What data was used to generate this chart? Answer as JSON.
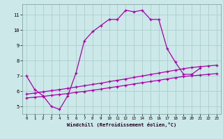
{
  "bg_color": "#cce8e8",
  "grid_color": "#aacfcf",
  "line_color": "#aa00aa",
  "xlabel": "Windchill (Refroidissement éolien,°C)",
  "xlim": [
    -0.5,
    23.5
  ],
  "ylim": [
    4.5,
    11.7
  ],
  "xticks": [
    0,
    1,
    2,
    3,
    4,
    5,
    6,
    7,
    8,
    9,
    10,
    11,
    12,
    13,
    14,
    15,
    16,
    17,
    18,
    19,
    20,
    21,
    22,
    23
  ],
  "yticks": [
    5,
    6,
    7,
    8,
    9,
    10,
    11
  ],
  "s1_x": [
    0,
    1,
    2,
    3,
    4,
    5,
    6,
    7,
    8,
    9,
    10,
    11,
    12,
    13,
    14,
    15,
    16,
    17,
    18,
    19,
    20,
    21
  ],
  "s1_y": [
    7.0,
    6.1,
    5.7,
    5.0,
    4.8,
    5.7,
    7.2,
    9.3,
    9.9,
    10.3,
    10.7,
    10.7,
    11.3,
    11.2,
    11.3,
    10.7,
    10.7,
    8.8,
    7.9,
    7.1,
    7.1,
    7.5
  ],
  "s2_x": [
    0,
    1,
    2,
    3,
    4,
    5,
    6,
    7,
    8,
    9,
    10,
    11,
    12,
    13,
    14,
    15,
    16,
    17,
    18,
    19,
    20,
    21,
    22,
    23
  ],
  "s2_y": [
    5.55,
    5.6,
    5.65,
    5.72,
    5.78,
    5.84,
    5.92,
    5.98,
    6.06,
    6.13,
    6.22,
    6.3,
    6.38,
    6.47,
    6.55,
    6.63,
    6.71,
    6.8,
    6.88,
    6.96,
    7.0,
    7.05,
    7.1,
    7.15
  ],
  "s3_x": [
    0,
    1,
    2,
    3,
    4,
    5,
    6,
    7,
    8,
    9,
    10,
    11,
    12,
    13,
    14,
    15,
    16,
    17,
    18,
    19,
    20,
    21,
    22,
    23
  ],
  "s3_y": [
    5.8,
    5.87,
    5.95,
    6.03,
    6.1,
    6.18,
    6.27,
    6.35,
    6.44,
    6.52,
    6.62,
    6.71,
    6.8,
    6.9,
    6.99,
    7.09,
    7.18,
    7.28,
    7.37,
    7.47,
    7.55,
    7.6,
    7.65,
    7.7
  ]
}
